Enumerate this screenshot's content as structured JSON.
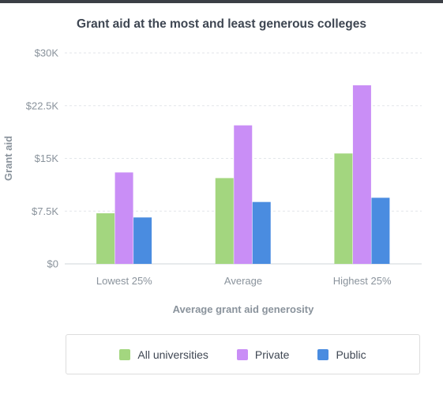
{
  "chart_data": {
    "type": "bar",
    "title": "Grant aid at the most and least generous colleges",
    "xlabel": "Average grant aid generosity",
    "ylabel": "Grant aid",
    "categories": [
      "Lowest 25%",
      "Average",
      "Highest 25%"
    ],
    "series": [
      {
        "name": "All universities",
        "color": "#a3d67f",
        "values": [
          7200,
          12200,
          15700
        ]
      },
      {
        "name": "Private",
        "color": "#c98ef6",
        "values": [
          13000,
          19700,
          25400
        ]
      },
      {
        "name": "Public",
        "color": "#4a8ce0",
        "values": [
          6600,
          8800,
          9400
        ]
      }
    ],
    "ylim": [
      0,
      30000
    ],
    "yticks": [
      0,
      7500,
      15000,
      22500,
      30000
    ],
    "ytick_labels": [
      "$0",
      "$7.5K",
      "$15K",
      "$22.5K",
      "$30K"
    ],
    "grid": true,
    "legend_position": "bottom"
  }
}
